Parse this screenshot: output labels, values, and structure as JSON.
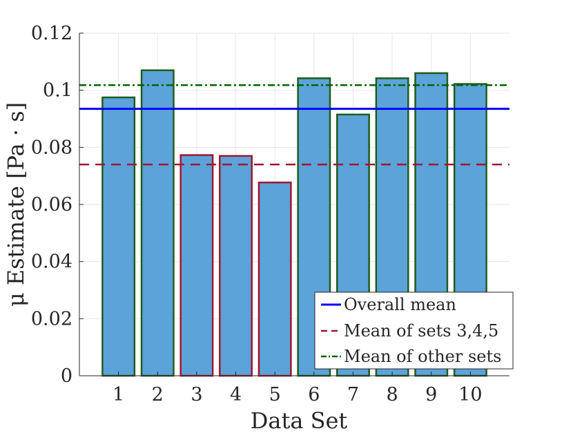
{
  "chart_data": {
    "type": "bar",
    "xlabel": "Data Set",
    "ylabel": "μ Estimate [Pa · s]",
    "categories": [
      "1",
      "2",
      "3",
      "4",
      "5",
      "6",
      "7",
      "8",
      "9",
      "10"
    ],
    "values": [
      0.0975,
      0.107,
      0.0773,
      0.077,
      0.0677,
      0.1042,
      0.0915,
      0.1042,
      0.106,
      0.1022
    ],
    "highlighted_sets": [
      3,
      4,
      5
    ],
    "ylim": [
      0,
      0.12
    ],
    "xlim": [
      0,
      11
    ],
    "yticks": [
      0,
      0.02,
      0.04,
      0.06,
      0.08,
      0.1,
      0.12
    ],
    "ytick_labels": [
      "0",
      "0.02",
      "0.04",
      "0.06",
      "0.08",
      "0.1",
      "0.12"
    ],
    "grid": true,
    "reference_lines": [
      {
        "name": "Overall mean",
        "value": 0.0935,
        "style": "solid",
        "color": "#0000ff"
      },
      {
        "name": "Mean of sets 3,4,5",
        "value": 0.074,
        "style": "dashed",
        "color": "#a2142f"
      },
      {
        "name": "Mean of other sets",
        "value": 0.1018,
        "style": "dashdot",
        "color": "#006400"
      }
    ],
    "legend": {
      "position": "bottom-right",
      "entries": [
        "Overall mean",
        "Mean of sets 3,4,5",
        "Mean of other sets"
      ]
    },
    "colors": {
      "bar_fill": "#5ba3d8",
      "edge_other": "#1e5c1e",
      "edge_highlight": "#a2142f",
      "axis": "#262626",
      "grid": "#e6e6e6"
    }
  }
}
